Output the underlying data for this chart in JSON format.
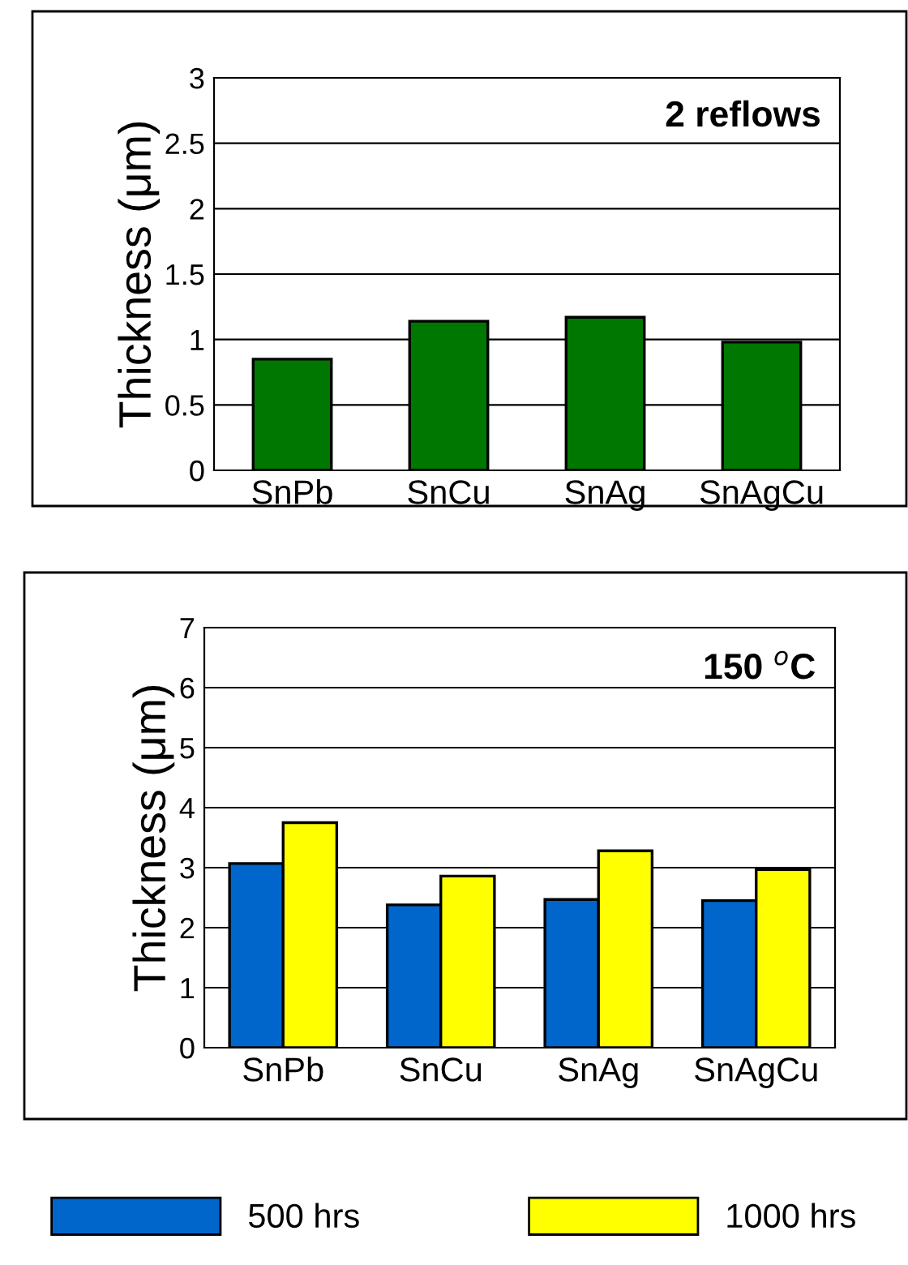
{
  "chart_data": [
    {
      "type": "bar",
      "ylabel": "Thickness (μm)",
      "categories": [
        "SnPb",
        "SnCu",
        "SnAg",
        "SnAgCu"
      ],
      "series": [
        {
          "color": "#007700",
          "values": [
            0.85,
            1.14,
            1.17,
            0.98
          ]
        }
      ],
      "ylim": [
        0,
        3
      ],
      "yticks": [
        0,
        0.5,
        1,
        1.5,
        2,
        2.5,
        3
      ],
      "grid": "y",
      "annotations": [
        "2 reflows"
      ]
    },
    {
      "type": "bar",
      "ylabel": "Thickness (μm)",
      "categories": [
        "SnPb",
        "SnCu",
        "SnAg",
        "SnAgCu"
      ],
      "series": [
        {
          "name": "500 hrs",
          "color": "#0066cc",
          "values": [
            3.07,
            2.38,
            2.47,
            2.45
          ]
        },
        {
          "name": "1000 hrs",
          "color": "#ffff00",
          "values": [
            3.75,
            2.86,
            3.28,
            2.97
          ]
        }
      ],
      "ylim": [
        0,
        7
      ],
      "yticks": [
        0,
        1,
        2,
        3,
        4,
        5,
        6,
        7
      ],
      "grid": "y",
      "legend": "bottom",
      "annotations": [
        "150 $^{o}$C"
      ]
    }
  ]
}
